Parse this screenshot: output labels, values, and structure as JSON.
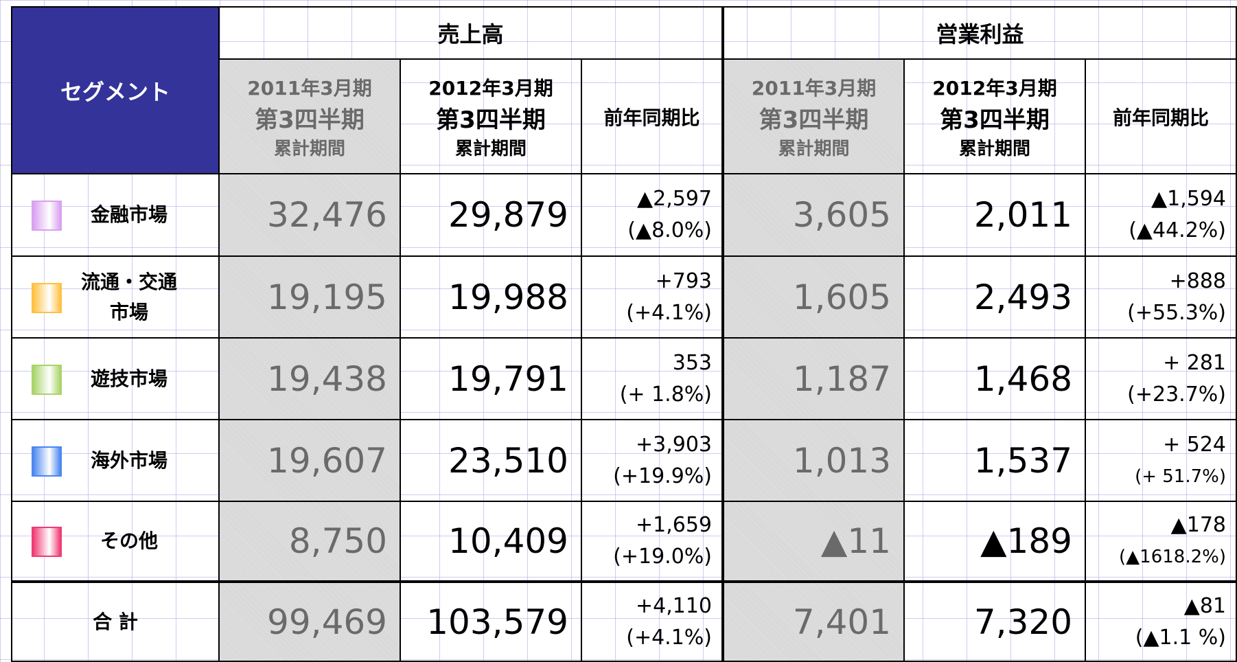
{
  "header": {
    "segment": "セグメント",
    "groups": [
      {
        "title": "売上高",
        "columns": [
          {
            "line1": "2011年3月期",
            "line2": "第3四半期",
            "line3": "累計期間"
          },
          {
            "line1": "2012年3月期",
            "line2": "第3四半期",
            "line3": "累計期間"
          },
          {
            "line1": "前年同期比"
          }
        ]
      },
      {
        "title": "営業利益",
        "columns": [
          {
            "line1": "2011年3月期",
            "line2": "第3四半期",
            "line3": "累計期間"
          },
          {
            "line1": "2012年3月期",
            "line2": "第3四半期",
            "line3": "累計期間"
          },
          {
            "line1": "前年同期比"
          }
        ]
      }
    ]
  },
  "rows": [
    {
      "name": [
        "金融市場"
      ],
      "color": "#d9a0f0",
      "sales": [
        "32,476",
        "29,879",
        "▲2,597",
        "(▲8.0%)"
      ],
      "profit": [
        "3,605",
        "2,011",
        "▲1,594",
        "(▲44.2%)"
      ]
    },
    {
      "name": [
        "流通・交通",
        "市場"
      ],
      "color": "#ffc040",
      "sales": [
        "19,195",
        "19,988",
        "+793",
        "(+4.1%)"
      ],
      "profit": [
        "1,605",
        "2,493",
        "+888",
        "(+55.3%)"
      ]
    },
    {
      "name": [
        "遊技市場"
      ],
      "color": "#a8d468",
      "sales": [
        "19,438",
        "19,791",
        "353",
        "(+ 1.8%)"
      ],
      "profit": [
        "1,187",
        "1,468",
        "+ 281",
        "(+23.7%)"
      ]
    },
    {
      "name": [
        "海外市場"
      ],
      "color": "#4a86f0",
      "sales": [
        "19,607",
        "23,510",
        "+3,903",
        "(+19.9%)"
      ],
      "profit": [
        "1,013",
        "1,537",
        "+ 524",
        "(+ 51.7%)"
      ]
    },
    {
      "name": [
        "その他"
      ],
      "color": "#f03a74",
      "sales": [
        "8,750",
        "10,409",
        "+1,659",
        "(+19.0%)"
      ],
      "profit": [
        "▲11",
        "▲189",
        "▲178",
        "(▲1618.2%)"
      ]
    },
    {
      "name": [
        "合 計"
      ],
      "sales": [
        "99,469",
        "103,579",
        "+4,110",
        "(+4.1%)"
      ],
      "profit": [
        "7,401",
        "7,320",
        "▲81",
        "(▲1.1 %)"
      ]
    }
  ]
}
